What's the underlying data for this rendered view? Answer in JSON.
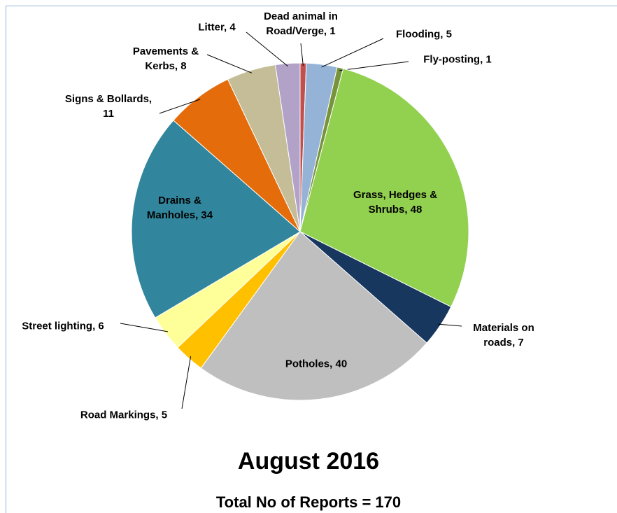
{
  "chart_data": {
    "type": "pie",
    "values": [
      1,
      5,
      1,
      48,
      7,
      40,
      5,
      6,
      34,
      11,
      8,
      4
    ],
    "value_labels": [
      "Dead animal in Road/Verge, 1",
      "Flooding, 5",
      "Fly-posting, 1",
      "Grass, Hedges & Shrubs, 48",
      "Materials on roads, 7",
      "Potholes, 40",
      "Road Markings, 5",
      "Street lighting, 6",
      "Drains & Manholes, 34",
      "Signs & Bollards, 11",
      "Pavements & Kerbs, 8",
      "Litter, 4"
    ],
    "colors": [
      "#c0504d",
      "#95b3d7",
      "#77933c",
      "#92d050",
      "#17375e",
      "#bfbfbf",
      "#ffc000",
      "#ffff99",
      "#31859c",
      "#e46c0a",
      "#c4bd97",
      "#b2a2c7"
    ],
    "title": "August 2016",
    "subtitle": "Total No of Reports = 170"
  }
}
